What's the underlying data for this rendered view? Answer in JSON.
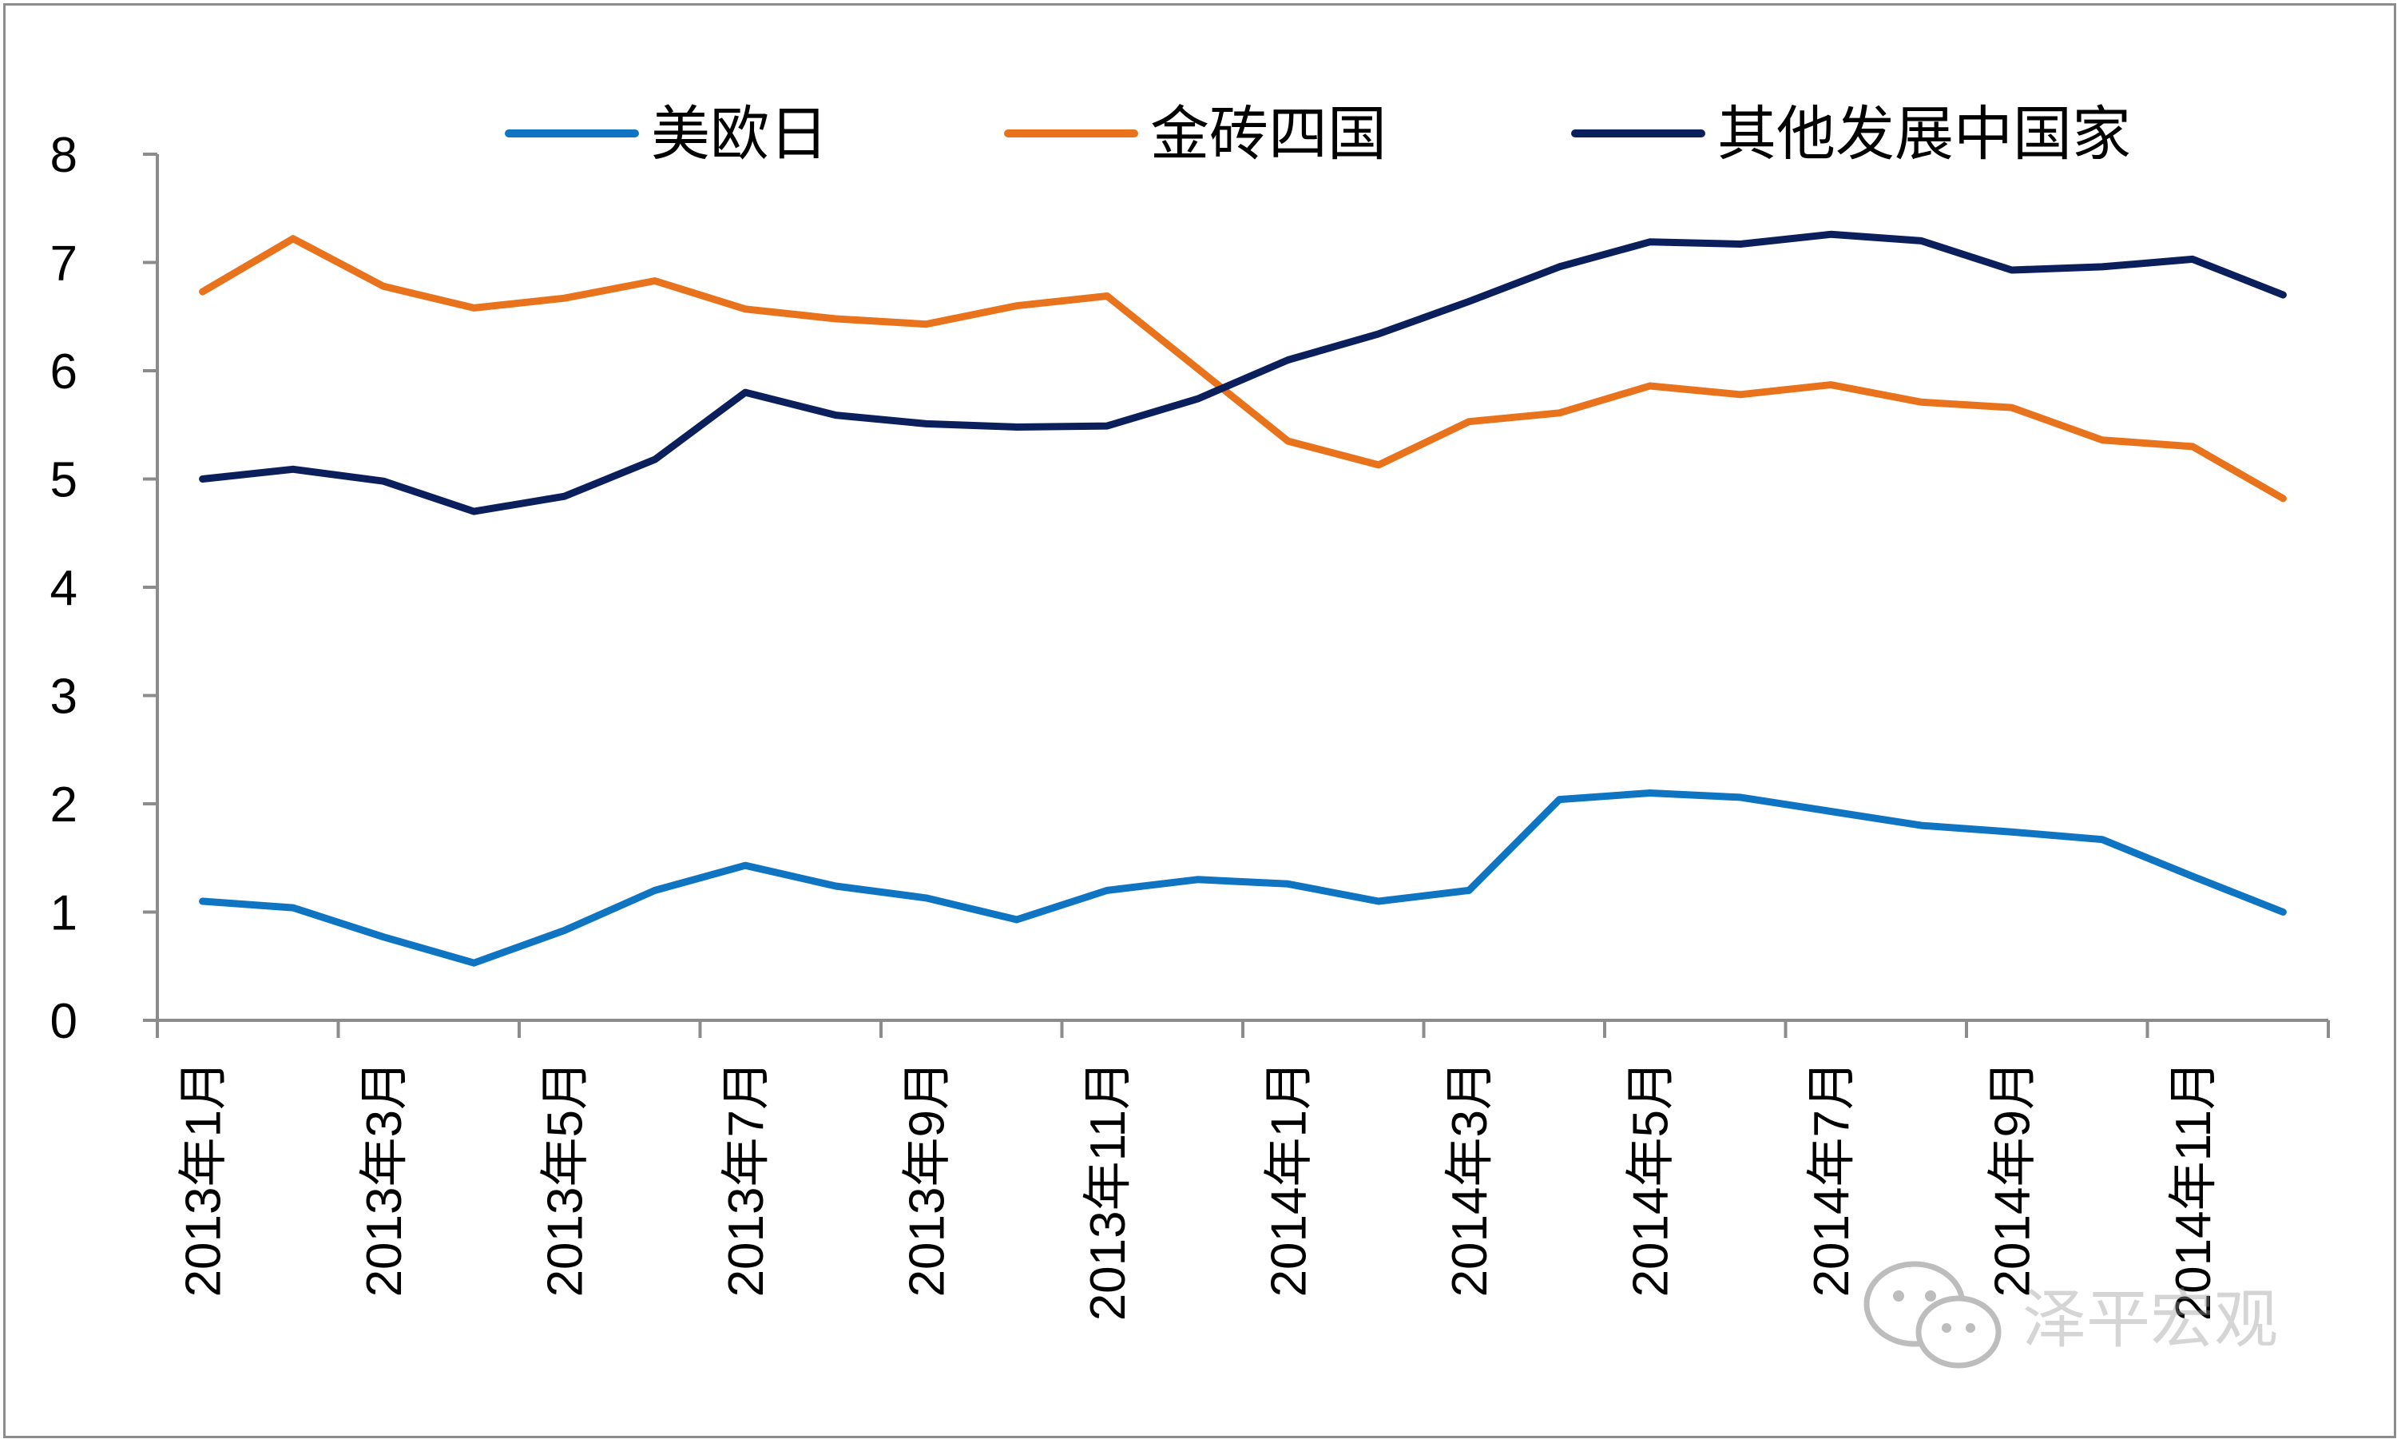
{
  "chart_data": {
    "type": "line",
    "x": [
      "2013年1月",
      "2013年2月",
      "2013年3月",
      "2013年4月",
      "2013年5月",
      "2013年6月",
      "2013年7月",
      "2013年8月",
      "2013年9月",
      "2013年10月",
      "2013年11月",
      "2013年12月",
      "2014年1月",
      "2014年2月",
      "2014年3月",
      "2014年4月",
      "2014年5月",
      "2014年6月",
      "2014年7月",
      "2014年8月",
      "2014年9月",
      "2014年10月",
      "2014年11月",
      "2014年12月"
    ],
    "x_tick_labels": [
      "2013年1月",
      "2013年3月",
      "2013年5月",
      "2013年7月",
      "2013年9月",
      "2013年11月",
      "2014年1月",
      "2014年3月",
      "2014年5月",
      "2014年7月",
      "2014年9月",
      "2014年11月"
    ],
    "series": [
      {
        "name": "美欧日",
        "color": "#0f74c2",
        "values": [
          1.1,
          1.04,
          0.77,
          0.53,
          0.83,
          1.2,
          1.43,
          1.24,
          1.13,
          0.93,
          1.2,
          1.3,
          1.26,
          1.1,
          1.2,
          2.04,
          2.1,
          2.06,
          1.93,
          1.8,
          1.74,
          1.67,
          1.33,
          1.0
        ]
      },
      {
        "name": "金砖四国",
        "color": "#e8731c",
        "values": [
          6.73,
          7.22,
          6.78,
          6.58,
          6.67,
          6.83,
          6.57,
          6.48,
          6.43,
          6.6,
          6.69,
          6.02,
          5.35,
          5.13,
          5.53,
          5.61,
          5.86,
          5.78,
          5.87,
          5.71,
          5.66,
          5.36,
          5.3,
          4.82
        ]
      },
      {
        "name": "其他发展中国家",
        "color": "#0b1f5c",
        "values": [
          5.0,
          5.09,
          4.98,
          4.7,
          4.84,
          5.18,
          5.8,
          5.59,
          5.51,
          5.48,
          5.49,
          5.74,
          6.1,
          6.34,
          6.64,
          6.96,
          7.19,
          7.17,
          7.26,
          7.2,
          6.93,
          6.96,
          7.03,
          6.7
        ]
      }
    ],
    "ylim": [
      0,
      8
    ],
    "yticks": [
      0,
      1,
      2,
      3,
      4,
      5,
      6,
      7,
      8
    ],
    "legend_position": "top",
    "grid": false
  },
  "watermark": {
    "text": "泽平宏观",
    "icon": "wechat-icon"
  }
}
